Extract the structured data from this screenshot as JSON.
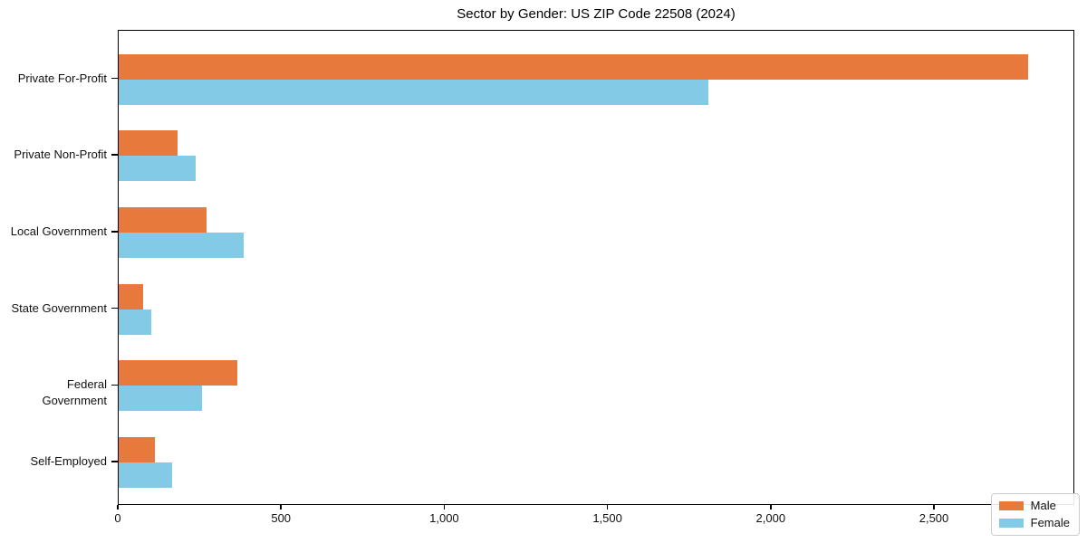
{
  "chart_data": {
    "type": "bar",
    "orientation": "horizontal",
    "title": "Sector by Gender: US ZIP Code 22508 (2024)",
    "categories": [
      "Private For-Profit",
      "Private Non-Profit",
      "Local Government",
      "State Government",
      "Federal Government",
      "Self-Employed"
    ],
    "series": [
      {
        "name": "Male",
        "color": "#E8793D",
        "values": [
          2790,
          180,
          270,
          75,
          365,
          110
        ]
      },
      {
        "name": "Female",
        "color": "#82CAE6",
        "values": [
          1810,
          235,
          385,
          100,
          255,
          165
        ]
      }
    ],
    "xlabel": "",
    "ylabel": "",
    "xlim": [
      0,
      2930
    ],
    "x_ticks": [
      0,
      500,
      1000,
      1500,
      2000,
      2500
    ],
    "x_tick_labels": [
      "0",
      "500",
      "1,000",
      "1,500",
      "2,000",
      "2,500"
    ],
    "legend_position": "lower right",
    "grid": false,
    "colors": {
      "male": "#E8793D",
      "female": "#82CAE6",
      "spine": "#000000",
      "background": "#ffffff"
    }
  }
}
